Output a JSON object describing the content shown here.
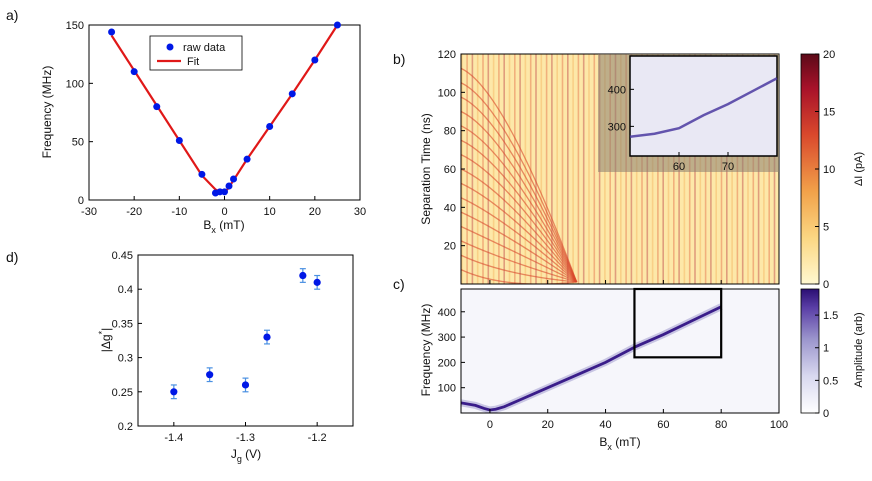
{
  "chart_data": [
    {
      "panel": "a)",
      "type": "scatter",
      "xlabel": "B",
      "xlabel_sub": "x",
      "xlabel_unit": " (mT)",
      "ylabel": "Frequency (MHz)",
      "xlim": [
        -30,
        30
      ],
      "ylim": [
        0,
        150
      ],
      "xticks": [
        -30,
        -20,
        -10,
        0,
        10,
        20,
        30
      ],
      "yticks": [
        0,
        50,
        100,
        150
      ],
      "series": [
        {
          "name": "raw data",
          "kind": "points",
          "color": "#0018e6",
          "x": [
            -25,
            -20,
            -15,
            -10,
            -5,
            -2,
            -1,
            0,
            1,
            2,
            5,
            10,
            15,
            20,
            25
          ],
          "y": [
            144,
            110,
            80,
            51,
            22,
            6,
            7,
            7,
            12,
            18,
            35,
            63,
            91,
            120,
            150
          ]
        },
        {
          "name": "Fit",
          "kind": "line",
          "color": "#e01818",
          "x": [
            -25,
            -20,
            -15,
            -10,
            -5,
            -2,
            -1,
            0,
            1,
            2,
            5,
            10,
            15,
            20,
            25
          ],
          "y": [
            141,
            111,
            81,
            51,
            21,
            9,
            7,
            6,
            11,
            17,
            35,
            63,
            91,
            120,
            150
          ]
        }
      ]
    },
    {
      "panel": "b)",
      "type": "heatmap",
      "ylabel": "Separation Time (ns)",
      "xlim": [
        -10,
        100
      ],
      "ylim": [
        0,
        120
      ],
      "yticks": [
        20,
        40,
        60,
        80,
        100,
        120
      ],
      "colorbar": {
        "label": "ΔI (pA)",
        "range": [
          0,
          20
        ],
        "ticks": [
          0,
          5,
          10,
          15,
          20
        ],
        "colors": [
          "#fff8d0",
          "#fbd783",
          "#f2a24a",
          "#d9482c",
          "#a8122a",
          "#5c0a18"
        ]
      },
      "inset": {
        "xticks": [
          60,
          70
        ],
        "yticks": [
          300,
          400
        ],
        "xlim": [
          50,
          80
        ],
        "ylim": [
          220,
          490
        ],
        "trace": {
          "x": [
            50,
            55,
            60,
            65,
            70,
            75,
            80
          ],
          "y": [
            272,
            280,
            295,
            330,
            360,
            395,
            430
          ]
        }
      }
    },
    {
      "panel": "c)",
      "type": "heatmap",
      "xlabel": "B",
      "xlabel_sub": "x",
      "xlabel_unit": " (mT)",
      "ylabel": "Frequency (MHz)",
      "xlim": [
        -10,
        100
      ],
      "ylim": [
        0,
        490
      ],
      "xticks": [
        0,
        20,
        40,
        60,
        80,
        100
      ],
      "yticks": [
        100,
        200,
        300,
        400
      ],
      "colorbar": {
        "label": "Amplitude (arb)",
        "range": [
          0,
          1.9
        ],
        "ticks": [
          0,
          0.5,
          1,
          1.5
        ],
        "colors": [
          "#ffffff",
          "#d8d8ef",
          "#9a94cc",
          "#5a3ea6",
          "#2b0f73"
        ]
      },
      "trace": {
        "x": [
          -10,
          -5,
          -2,
          0,
          2,
          5,
          10,
          20,
          30,
          40,
          50,
          60,
          70,
          80
        ],
        "y": [
          40,
          30,
          18,
          12,
          15,
          25,
          50,
          100,
          150,
          200,
          260,
          310,
          365,
          420
        ]
      },
      "box": {
        "x": [
          50,
          80
        ],
        "y": [
          220,
          490
        ]
      }
    },
    {
      "panel": "d)",
      "type": "scatter",
      "xlabel": "J",
      "xlabel_sub": "g",
      "xlabel_unit": " (V)",
      "ylabel": "|Δg",
      "ylabel_sup": "*",
      "ylabel_end": "|",
      "xlim": [
        -1.45,
        -1.15
      ],
      "ylim": [
        0.2,
        0.45
      ],
      "xticks": [
        -1.4,
        -1.3,
        -1.2
      ],
      "yticks": [
        0.2,
        0.25,
        0.3,
        0.35,
        0.4,
        0.45
      ],
      "series": [
        {
          "name": "|Δg*|",
          "color": "#0018e6",
          "x": [
            -1.4,
            -1.35,
            -1.3,
            -1.27,
            -1.22,
            -1.2
          ],
          "y": [
            0.25,
            0.275,
            0.26,
            0.33,
            0.42,
            0.41
          ],
          "err": [
            0.01,
            0.01,
            0.01,
            0.01,
            0.01,
            0.01
          ]
        }
      ]
    }
  ],
  "colors": {
    "points": "#0018e6",
    "fit": "#e01818",
    "errbar": "#4a90e2"
  }
}
